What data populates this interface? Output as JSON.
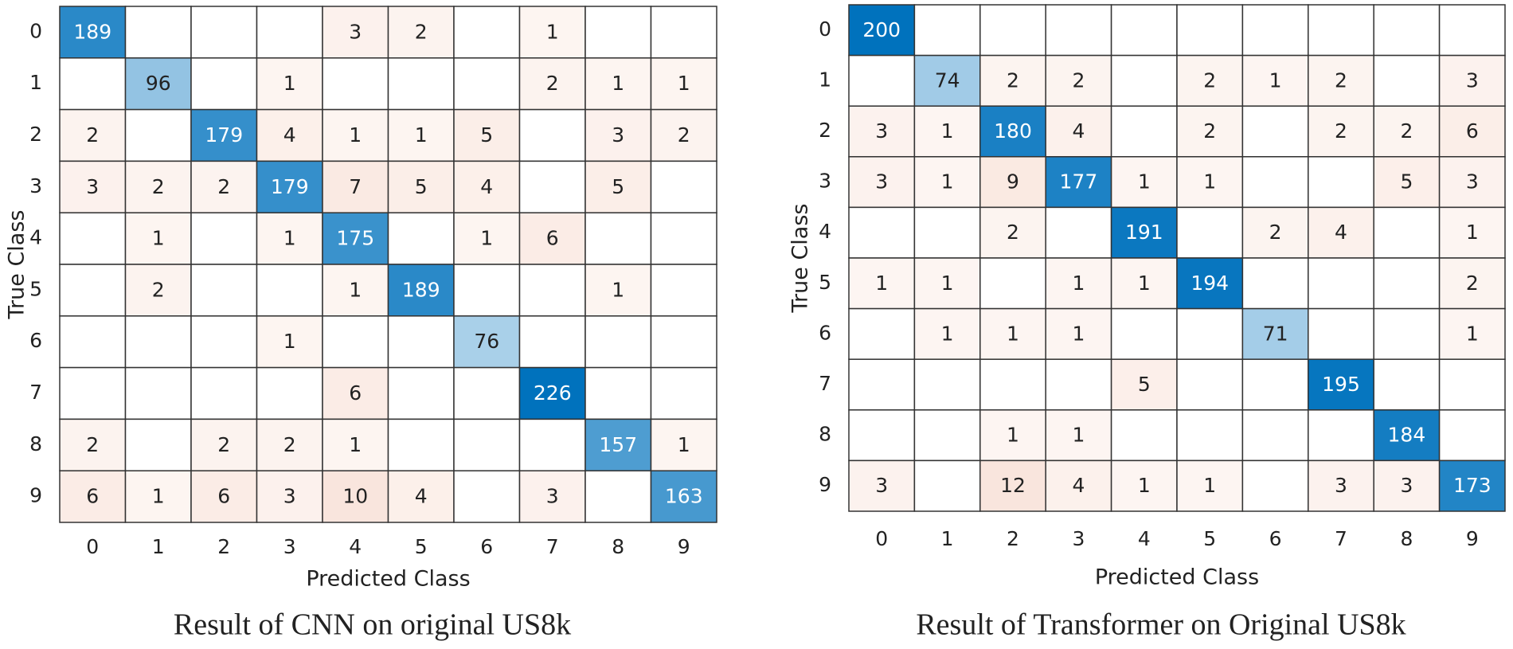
{
  "chart_data": [
    {
      "type": "heatmap",
      "title": "Result of CNN on original US8k",
      "xlabel": "Predicted Class",
      "ylabel": "True Class",
      "categories": [
        "0",
        "1",
        "2",
        "3",
        "4",
        "5",
        "6",
        "7",
        "8",
        "9"
      ],
      "diagonal_color": "#0072bd",
      "off_diagonal_color": "#d95319",
      "matrix": [
        [
          189,
          null,
          null,
          null,
          3,
          2,
          null,
          1,
          null,
          null
        ],
        [
          null,
          96,
          null,
          1,
          null,
          null,
          null,
          2,
          1,
          1
        ],
        [
          2,
          null,
          179,
          4,
          1,
          1,
          5,
          null,
          3,
          2
        ],
        [
          3,
          2,
          2,
          179,
          7,
          5,
          4,
          null,
          5,
          null
        ],
        [
          null,
          1,
          null,
          1,
          175,
          null,
          1,
          6,
          null,
          null
        ],
        [
          null,
          2,
          null,
          null,
          1,
          189,
          null,
          null,
          1,
          null
        ],
        [
          null,
          null,
          null,
          1,
          null,
          null,
          76,
          null,
          null,
          null
        ],
        [
          null,
          null,
          null,
          null,
          6,
          null,
          null,
          226,
          null,
          null
        ],
        [
          2,
          null,
          2,
          2,
          1,
          null,
          null,
          null,
          157,
          1
        ],
        [
          6,
          1,
          6,
          3,
          10,
          4,
          null,
          3,
          null,
          163
        ]
      ]
    },
    {
      "type": "heatmap",
      "title": "Result of Transformer on Original US8k",
      "xlabel": "Predicted Class",
      "ylabel": "True Class",
      "categories": [
        "0",
        "1",
        "2",
        "3",
        "4",
        "5",
        "6",
        "7",
        "8",
        "9"
      ],
      "diagonal_color": "#0072bd",
      "off_diagonal_color": "#d95319",
      "matrix": [
        [
          200,
          null,
          null,
          null,
          null,
          null,
          null,
          null,
          null,
          null
        ],
        [
          null,
          74,
          2,
          2,
          null,
          2,
          1,
          2,
          null,
          3
        ],
        [
          3,
          1,
          180,
          4,
          null,
          2,
          null,
          2,
          2,
          6
        ],
        [
          3,
          1,
          9,
          177,
          1,
          1,
          null,
          null,
          5,
          3
        ],
        [
          null,
          null,
          2,
          null,
          191,
          null,
          2,
          4,
          null,
          1
        ],
        [
          1,
          1,
          null,
          1,
          1,
          194,
          null,
          null,
          null,
          2
        ],
        [
          null,
          1,
          1,
          1,
          null,
          null,
          71,
          null,
          null,
          1
        ],
        [
          null,
          null,
          null,
          null,
          5,
          null,
          null,
          195,
          null,
          null
        ],
        [
          null,
          null,
          1,
          1,
          null,
          null,
          null,
          null,
          184,
          null
        ],
        [
          3,
          null,
          12,
          4,
          1,
          1,
          null,
          3,
          3,
          173
        ]
      ]
    }
  ]
}
